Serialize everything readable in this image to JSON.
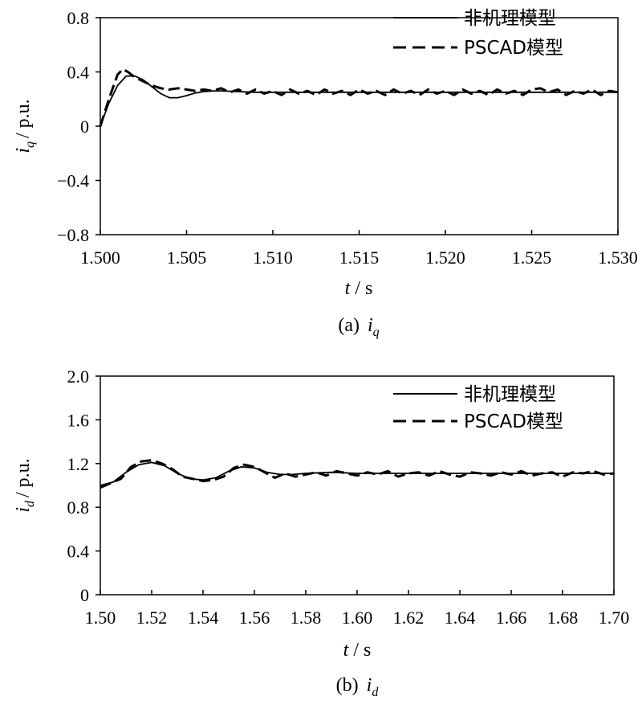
{
  "chart_data": [
    {
      "id": "a",
      "type": "line",
      "caption_prefix": "(a)",
      "caption_var": "i",
      "caption_sub": "q",
      "ylabel_var": "i",
      "ylabel_sub": "q",
      "ylabel_unit": "/ p.u.",
      "xlabel_var": "t",
      "xlabel_unit": "/ s",
      "xlim": [
        1.5,
        1.53
      ],
      "ylim": [
        -0.8,
        0.8
      ],
      "xticks": [
        "1.500",
        "1.505",
        "1.510",
        "1.515",
        "1.520",
        "1.525",
        "1.530"
      ],
      "yticks": [
        "0.8",
        "0.4",
        "0",
        "−0.4",
        "−0.8"
      ],
      "legend_position": "top-right",
      "series": [
        {
          "name": "非机理模型",
          "style": "solid",
          "x": [
            1.5,
            1.5005,
            1.501,
            1.5015,
            1.502,
            1.5025,
            1.503,
            1.5035,
            1.504,
            1.5045,
            1.505,
            1.5055,
            1.506,
            1.5065,
            1.507,
            1.508,
            1.509,
            1.51,
            1.512,
            1.515,
            1.518,
            1.52,
            1.523,
            1.525,
            1.527,
            1.53
          ],
          "y": [
            0.0,
            0.17,
            0.3,
            0.37,
            0.37,
            0.34,
            0.29,
            0.24,
            0.21,
            0.21,
            0.225,
            0.245,
            0.255,
            0.26,
            0.26,
            0.255,
            0.25,
            0.25,
            0.25,
            0.25,
            0.25,
            0.25,
            0.25,
            0.25,
            0.25,
            0.25
          ]
        },
        {
          "name": "PSCAD模型",
          "style": "dashed",
          "x": [
            1.5,
            1.5005,
            1.501,
            1.5013,
            1.5016,
            1.502,
            1.5025,
            1.503,
            1.5035,
            1.504,
            1.5045,
            1.505,
            1.5055,
            1.506,
            1.5065,
            1.507,
            1.5075,
            1.508,
            1.5085,
            1.509,
            1.5095,
            1.51,
            1.5105,
            1.511,
            1.5115,
            1.512,
            1.5125,
            1.513,
            1.5135,
            1.514,
            1.5145,
            1.515,
            1.5155,
            1.516,
            1.5165,
            1.517,
            1.5175,
            1.518,
            1.5185,
            1.519,
            1.5195,
            1.52,
            1.5205,
            1.521,
            1.5215,
            1.522,
            1.5225,
            1.523,
            1.5235,
            1.524,
            1.5245,
            1.525,
            1.5255,
            1.526,
            1.5265,
            1.527,
            1.5275,
            1.528,
            1.5285,
            1.529,
            1.5295,
            1.53
          ],
          "y": [
            0.0,
            0.2,
            0.38,
            0.42,
            0.4,
            0.36,
            0.33,
            0.3,
            0.28,
            0.27,
            0.28,
            0.27,
            0.26,
            0.27,
            0.26,
            0.28,
            0.25,
            0.27,
            0.24,
            0.27,
            0.24,
            0.26,
            0.23,
            0.27,
            0.24,
            0.26,
            0.23,
            0.27,
            0.24,
            0.26,
            0.23,
            0.27,
            0.24,
            0.26,
            0.23,
            0.27,
            0.24,
            0.26,
            0.23,
            0.27,
            0.24,
            0.26,
            0.23,
            0.27,
            0.24,
            0.26,
            0.23,
            0.27,
            0.24,
            0.26,
            0.23,
            0.27,
            0.28,
            0.25,
            0.27,
            0.23,
            0.26,
            0.24,
            0.27,
            0.23,
            0.26,
            0.25
          ]
        }
      ]
    },
    {
      "id": "b",
      "type": "line",
      "caption_prefix": "(b)",
      "caption_var": "i",
      "caption_sub": "d",
      "ylabel_var": "i",
      "ylabel_sub": "d",
      "ylabel_unit": "/ p.u.",
      "xlabel_var": "t",
      "xlabel_unit": "/ s",
      "xlim": [
        1.5,
        1.7
      ],
      "ylim": [
        0,
        2.0
      ],
      "xticks": [
        "1.50",
        "1.52",
        "1.54",
        "1.56",
        "1.58",
        "1.60",
        "1.62",
        "1.64",
        "1.66",
        "1.68",
        "1.70"
      ],
      "yticks": [
        "2.0",
        "1.6",
        "1.2",
        "0.8",
        "0.4",
        "0"
      ],
      "legend_position": "top-right",
      "series": [
        {
          "name": "非机理模型",
          "style": "solid",
          "x": [
            1.5,
            1.505,
            1.51,
            1.515,
            1.52,
            1.525,
            1.53,
            1.535,
            1.54,
            1.545,
            1.55,
            1.555,
            1.56,
            1.565,
            1.57,
            1.575,
            1.58,
            1.59,
            1.6,
            1.62,
            1.64,
            1.66,
            1.68,
            1.7
          ],
          "y": [
            1.0,
            1.03,
            1.12,
            1.19,
            1.21,
            1.18,
            1.11,
            1.06,
            1.05,
            1.07,
            1.13,
            1.17,
            1.16,
            1.12,
            1.1,
            1.1,
            1.11,
            1.12,
            1.11,
            1.11,
            1.11,
            1.11,
            1.11,
            1.11
          ]
        },
        {
          "name": "PSCAD模型",
          "style": "dashed",
          "x": [
            1.5,
            1.504,
            1.508,
            1.512,
            1.516,
            1.52,
            1.524,
            1.528,
            1.532,
            1.536,
            1.54,
            1.544,
            1.548,
            1.552,
            1.556,
            1.56,
            1.564,
            1.568,
            1.572,
            1.576,
            1.58,
            1.584,
            1.588,
            1.592,
            1.596,
            1.6,
            1.604,
            1.608,
            1.612,
            1.616,
            1.62,
            1.624,
            1.628,
            1.632,
            1.636,
            1.64,
            1.644,
            1.648,
            1.652,
            1.656,
            1.66,
            1.664,
            1.668,
            1.672,
            1.676,
            1.68,
            1.684,
            1.688,
            1.692,
            1.696,
            1.7
          ],
          "y": [
            0.98,
            1.02,
            1.06,
            1.17,
            1.22,
            1.23,
            1.2,
            1.15,
            1.08,
            1.06,
            1.04,
            1.05,
            1.08,
            1.16,
            1.19,
            1.17,
            1.12,
            1.07,
            1.11,
            1.08,
            1.1,
            1.12,
            1.09,
            1.13,
            1.11,
            1.09,
            1.12,
            1.1,
            1.13,
            1.08,
            1.11,
            1.12,
            1.09,
            1.13,
            1.1,
            1.08,
            1.12,
            1.11,
            1.09,
            1.12,
            1.1,
            1.13,
            1.09,
            1.11,
            1.12,
            1.08,
            1.12,
            1.11,
            1.13,
            1.1,
            1.11
          ]
        }
      ]
    }
  ]
}
